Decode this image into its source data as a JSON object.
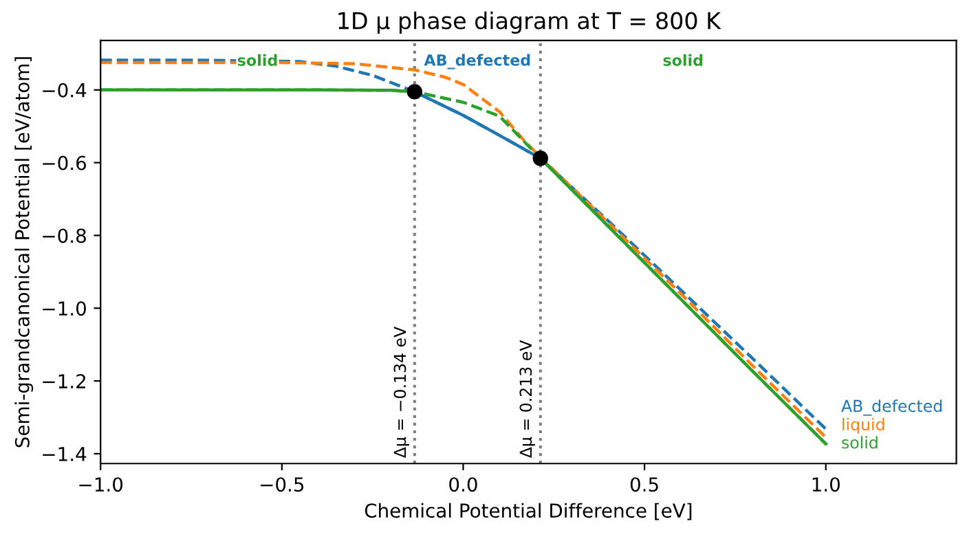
{
  "chart_data": {
    "type": "line",
    "title": "1D μ phase diagram at T = 800 K",
    "xlabel": "Chemical Potential Difference [eV]",
    "ylabel": "Semi-grandcanonical Potential [eV/atom]",
    "series": [
      {
        "name": "AB_defected",
        "color": "#1f77b4",
        "line_style": "dashed",
        "x": [
          -1,
          -0.75,
          -0.45,
          -0.35,
          -0.25,
          -0.134,
          0,
          0.1,
          0.213,
          0.4,
          0.6,
          0.8,
          1.0
        ],
        "values": [
          -0.318,
          -0.318,
          -0.322,
          -0.335,
          -0.36,
          -0.405,
          -0.47,
          -0.525,
          -0.588,
          -0.76,
          -0.95,
          -1.14,
          -1.332
        ]
      },
      {
        "name": "liquid",
        "color": "#ff7f0e",
        "line_style": "dashed",
        "x": [
          -1,
          -0.5,
          -0.3,
          -0.134,
          -0.05,
          0,
          0.1,
          0.165,
          0.213,
          0.4,
          0.6,
          0.8,
          1.0
        ],
        "values": [
          -0.325,
          -0.325,
          -0.328,
          -0.345,
          -0.365,
          -0.385,
          -0.46,
          -0.536,
          -0.585,
          -0.765,
          -0.96,
          -1.16,
          -1.355
        ]
      },
      {
        "name": "solid",
        "color": "#2ca02c",
        "line_style": "dashed",
        "x": [
          -1,
          -0.4,
          -0.2,
          -0.134,
          0,
          0.1,
          0.213,
          0.4,
          0.6,
          0.8,
          1.0
        ],
        "values": [
          -0.4,
          -0.4,
          -0.401,
          -0.405,
          -0.434,
          -0.472,
          -0.588,
          -0.775,
          -0.975,
          -1.175,
          -1.373
        ]
      },
      {
        "color": "#2ca02c",
        "line_style": "solid",
        "x": [
          -1,
          -0.4,
          -0.2,
          -0.134
        ],
        "values": [
          -0.4,
          -0.4,
          -0.401,
          -0.405
        ]
      },
      {
        "color": "#1f77b4",
        "line_style": "solid",
        "x": [
          -0.134,
          0,
          0.1,
          0.213
        ],
        "values": [
          -0.405,
          -0.47,
          -0.525,
          -0.588
        ]
      },
      {
        "color": "#2ca02c",
        "line_style": "solid",
        "x": [
          0.213,
          0.4,
          0.6,
          0.8,
          1.0
        ],
        "values": [
          -0.588,
          -0.775,
          -0.975,
          -1.175,
          -1.373
        ]
      },
      {
        "type": "scatter",
        "color": "#000000",
        "marker": "circle",
        "x": [
          -0.134,
          0.213
        ],
        "values": [
          -0.405,
          -0.588
        ]
      }
    ],
    "xlim": [
      -1,
      1.36
    ],
    "ylim": [
      -1.427,
      -0.264
    ],
    "xticks": [
      {
        "value": -1,
        "label": "−1.0"
      },
      {
        "value": -0.5,
        "label": "−0.5"
      },
      {
        "value": 0,
        "label": "0.0"
      },
      {
        "value": 0.5,
        "label": "0.5"
      },
      {
        "value": 1,
        "label": "1.0"
      }
    ],
    "yticks": [
      {
        "value": -1.4,
        "label": "−1.4"
      },
      {
        "value": -1.2,
        "label": "−1.2"
      },
      {
        "value": -1.0,
        "label": "−1.0"
      },
      {
        "value": -0.8,
        "label": "−0.8"
      },
      {
        "value": -0.6,
        "label": "−0.6"
      },
      {
        "value": -0.4,
        "label": "−0.4"
      }
    ],
    "ref_lines": [
      {
        "axis": "x",
        "value": -0.134,
        "label": "Δμ = −0.134 eV",
        "color": "#808080",
        "line_style": "dotted"
      },
      {
        "axis": "x",
        "value": 0.213,
        "label": "Δμ = 0.213 eV",
        "color": "#808080",
        "line_style": "dotted"
      }
    ],
    "annotations": [
      "solid",
      "AB_defected",
      "solid"
    ],
    "grid": false,
    "legend": false
  }
}
